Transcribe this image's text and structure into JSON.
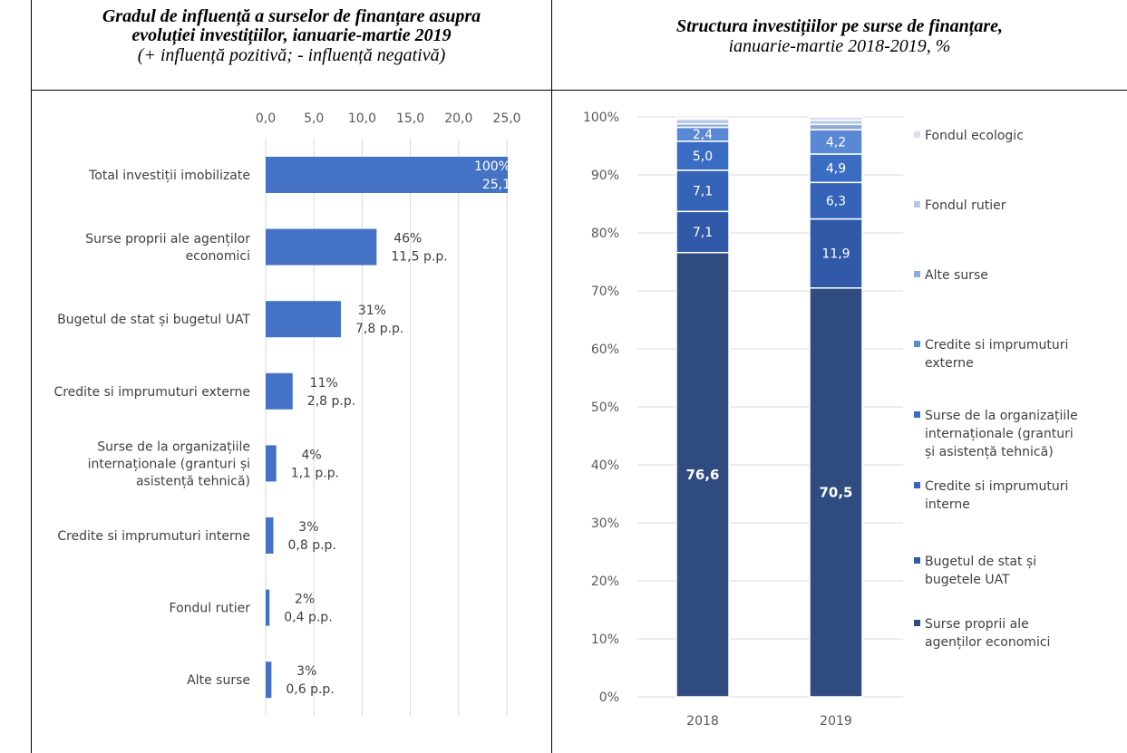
{
  "left_panel": {
    "title_line1": "Gradul de influență a surselor de finanțare asupra",
    "title_line2": "evoluției investițiilor, ianuarie-martie 2019",
    "subtitle": "(+ influență pozitivă; - influență negativă)"
  },
  "right_panel": {
    "title_line1": "Structura investițiilor pe surse de finanțare,",
    "title_line2": "ianuarie-martie 2018-2019, %"
  },
  "colors": {
    "bar_blue": "#4472C4",
    "grid": "#d9d9d9",
    "axis_text": "#595959",
    "seg_own": "#2f4b80",
    "seg_budget": "#3059a8",
    "seg_internal": "#3563b8",
    "seg_orgs": "#3b6cc4",
    "seg_external": "#5b88d6",
    "seg_other": "#8eaadb",
    "seg_road": "#b4c7e7",
    "seg_eco": "#d6dff0"
  },
  "chart_data": [
    {
      "type": "bar",
      "orientation": "horizontal",
      "categories": [
        [
          "Total investiții imobilizate"
        ],
        [
          "Surse proprii ale agenților",
          "economici"
        ],
        [
          "Bugetul de stat și bugetul UAT"
        ],
        [
          "Credite si imprumuturi externe"
        ],
        [
          "Surse de la organizațiile",
          "internaționale (granturi și",
          "asistență tehnică)"
        ],
        [
          "Credite si imprumuturi interne"
        ],
        [
          "Fondul rutier"
        ],
        [
          "Alte surse"
        ]
      ],
      "values": [
        25.1,
        11.5,
        7.8,
        2.8,
        1.1,
        0.8,
        0.4,
        0.6
      ],
      "share_labels": [
        "100%",
        "46%",
        "31%",
        "11%",
        "4%",
        "3%",
        "2%",
        "3%"
      ],
      "value_labels": [
        "25,1",
        "11,5 p.p.",
        "7,8 p.p.",
        "2,8 p.p.",
        "1,1 p.p.",
        "0,8 p.p.",
        "0,4 p.p.",
        "0,6 p.p."
      ],
      "x_ticks": [
        "0,0",
        "5,0",
        "10,0",
        "15,0",
        "20,0",
        "25,0"
      ],
      "xlim": [
        0,
        25
      ],
      "grid": true
    },
    {
      "type": "bar",
      "stacked": true,
      "categories": [
        "2018",
        "2019"
      ],
      "y_ticks": [
        "0%",
        "10%",
        "20%",
        "30%",
        "40%",
        "50%",
        "60%",
        "70%",
        "80%",
        "90%",
        "100%"
      ],
      "ylim": [
        0,
        100
      ],
      "legend_position": "right",
      "series": [
        {
          "name": "Surse proprii ale agenților economici",
          "legend_lines": [
            "Surse proprii ale",
            "agenților economici"
          ],
          "values": [
            76.6,
            70.5
          ],
          "labels": [
            "76,6",
            "70,5"
          ],
          "color_key": "seg_own"
        },
        {
          "name": "Bugetul de stat și bugetele UAT",
          "legend_lines": [
            "Bugetul de stat și",
            "bugetele UAT"
          ],
          "values": [
            7.1,
            11.9
          ],
          "labels": [
            "7,1",
            "11,9"
          ],
          "color_key": "seg_budget"
        },
        {
          "name": "Credite si imprumuturi interne",
          "legend_lines": [
            "Credite si imprumuturi",
            "interne"
          ],
          "values": [
            7.1,
            6.3
          ],
          "labels": [
            "7,1",
            "6,3"
          ],
          "color_key": "seg_internal"
        },
        {
          "name": "Surse de la organizațiile internaționale (granturi și asistență tehnică)",
          "legend_lines": [
            "Surse de la organizațiile",
            "internaționale (granturi",
            "și asistență tehnică)"
          ],
          "values": [
            5.0,
            4.9
          ],
          "labels": [
            "5,0",
            "4,9"
          ],
          "color_key": "seg_orgs"
        },
        {
          "name": "Credite si imprumuturi externe",
          "legend_lines": [
            "Credite si imprumuturi",
            "externe"
          ],
          "values": [
            2.4,
            4.2
          ],
          "labels": [
            "2,4",
            "4,2"
          ],
          "color_key": "seg_external"
        },
        {
          "name": "Alte surse",
          "legend_lines": [
            "Alte surse"
          ],
          "values": [
            0.6,
            0.9
          ],
          "labels": [
            "",
            ""
          ],
          "color_key": "seg_other"
        },
        {
          "name": "Fondul rutier",
          "legend_lines": [
            "Fondul rutier"
          ],
          "values": [
            0.8,
            0.7
          ],
          "labels": [
            "",
            ""
          ],
          "color_key": "seg_road"
        },
        {
          "name": "Fondul ecologic",
          "legend_lines": [
            "Fondul ecologic"
          ],
          "values": [
            0.3,
            0.6
          ],
          "labels": [
            "",
            ""
          ],
          "color_key": "seg_eco"
        }
      ]
    }
  ]
}
